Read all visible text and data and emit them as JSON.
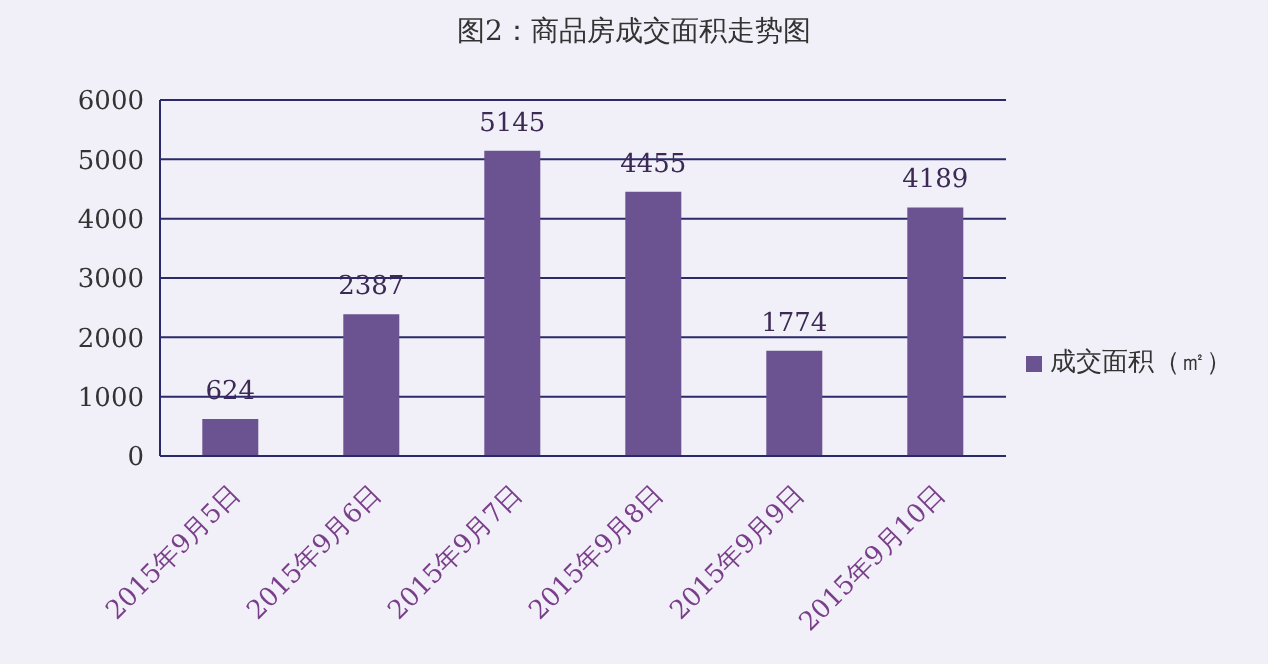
{
  "chart_data": {
    "type": "bar",
    "title": "图2：商品房成交面积走势图",
    "categories": [
      "2015年9月5日",
      "2015年9月6日",
      "2015年9月7日",
      "2015年9月8日",
      "2015年9月9日",
      "2015年9月10日"
    ],
    "series": [
      {
        "name": "成交面积（㎡）",
        "color": "#6b5391",
        "values": [
          624,
          2387,
          5145,
          4455,
          1774,
          4189
        ]
      }
    ],
    "ylim": [
      0,
      6000
    ],
    "yticks": [
      0,
      1000,
      2000,
      3000,
      4000,
      5000,
      6000
    ],
    "grid": "y",
    "legend": "right",
    "data_labels": true
  }
}
